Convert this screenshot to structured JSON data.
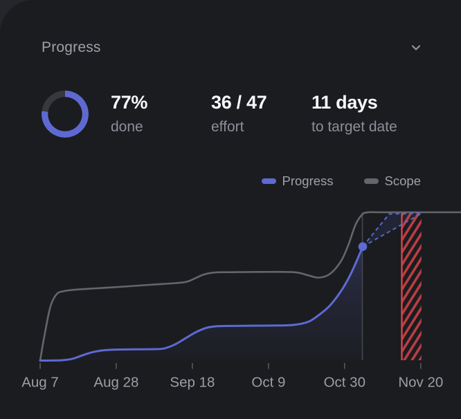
{
  "card": {
    "title": "Progress"
  },
  "icons": {
    "header_collapse": "chevron-down"
  },
  "stats": {
    "done": {
      "value": "77%",
      "label": "done",
      "percent": 77
    },
    "effort": {
      "value": "36 / 47",
      "label": "effort"
    },
    "target": {
      "value": "11 days",
      "label": "to target date"
    }
  },
  "legend": [
    {
      "label": "Progress",
      "color": "#5e6ad2"
    },
    {
      "label": "Scope",
      "color": "#63666d"
    }
  ],
  "colors": {
    "accent": "#5e6ad2",
    "scope_gray": "#63666d",
    "danger": "#e5484d",
    "donut_track": "#36383e",
    "card_bg": "#1b1c20",
    "page_bg": "#24262b",
    "text_bright": "#f7f8f8",
    "text_muted": "#8b8f98",
    "axis_text": "#9b9ea4",
    "tick": "#56585d",
    "today_line": "#45474c"
  },
  "chart_data": {
    "type": "line",
    "unit": "effort points",
    "y_range": [
      0,
      47
    ],
    "x_range_days": [
      0,
      116
    ],
    "grid": false,
    "legend_position": "top-right",
    "x_axis": {
      "tick_labels": [
        "Aug 7",
        "Aug 28",
        "Sep 18",
        "Oct 9",
        "Oct 30",
        "Nov 20"
      ],
      "tick_interval_days": 21
    },
    "series": [
      {
        "name": "Scope",
        "color": "#63666d",
        "points": [
          [
            0,
            0
          ],
          [
            1.2,
            8
          ],
          [
            2.8,
            17
          ],
          [
            4.5,
            21
          ],
          [
            6.5,
            22
          ],
          [
            10,
            22.5
          ],
          [
            20,
            23.2
          ],
          [
            30,
            24
          ],
          [
            38,
            24.6
          ],
          [
            41,
            25.2
          ],
          [
            45,
            27.2
          ],
          [
            48,
            27.9
          ],
          [
            52,
            28
          ],
          [
            60,
            28.1
          ],
          [
            70,
            28
          ],
          [
            74,
            27
          ],
          [
            77,
            26.3
          ],
          [
            80,
            27.5
          ],
          [
            83,
            31.5
          ],
          [
            85,
            36.5
          ],
          [
            87,
            43
          ],
          [
            88.8,
            46.2
          ],
          [
            90.5,
            47
          ],
          [
            95,
            47
          ],
          [
            116,
            47
          ]
        ]
      },
      {
        "name": "Progress",
        "color": "#5e6ad2",
        "points": [
          [
            0,
            0
          ],
          [
            6,
            0.1
          ],
          [
            9,
            0.6
          ],
          [
            12,
            1.8
          ],
          [
            15,
            2.8
          ],
          [
            18,
            3.3
          ],
          [
            22,
            3.5
          ],
          [
            30,
            3.6
          ],
          [
            34,
            3.8
          ],
          [
            37,
            5
          ],
          [
            40,
            7
          ],
          [
            43,
            9
          ],
          [
            46,
            10.4
          ],
          [
            49,
            10.9
          ],
          [
            55,
            11
          ],
          [
            65,
            11.1
          ],
          [
            70,
            11.3
          ],
          [
            74,
            12.3
          ],
          [
            77,
            14.5
          ],
          [
            80,
            17.5
          ],
          [
            83,
            22
          ],
          [
            85.5,
            27
          ],
          [
            87.5,
            32
          ],
          [
            89,
            36.1
          ]
        ]
      }
    ],
    "current_point": {
      "day_offset": 89,
      "value": 36.1
    },
    "projection": {
      "start_day": 89,
      "start_value": 36.1,
      "optimistic_day": 96.3,
      "pessimistic_day": 105.4,
      "completion_value": 47,
      "style": "dashed-cone"
    },
    "target_date": {
      "day_offset": 99.8,
      "days_remaining_label": "11 days"
    },
    "overdue_band": {
      "from_day": 99.8,
      "to_day": 105.2,
      "style": "red-hatch"
    }
  }
}
